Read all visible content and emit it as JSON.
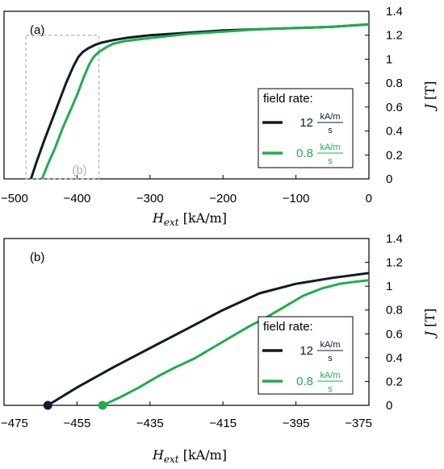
{
  "chart_data": [
    {
      "type": "line",
      "panel_label": "(a)",
      "xlabel": "H_ext [kA/m]",
      "ylabel": "J [T]",
      "xlim": [
        -500,
        0
      ],
      "ylim": [
        0,
        1.4
      ],
      "x_ticks": [
        "−500",
        "−400",
        "−300",
        "−200",
        "−100",
        "0"
      ],
      "y_ticks": [
        "0",
        "0.2",
        "0.4",
        "0.6",
        "0.8",
        "1",
        "1.2",
        "1.4"
      ],
      "y_axis_side": "right",
      "inset_box": {
        "x": [
          -470,
          -370
        ],
        "y": [
          0,
          1.2
        ],
        "label": "(b)",
        "color": "#b0b0b0"
      },
      "legend": {
        "title": "field rate:",
        "placement": "right",
        "entries": [
          {
            "value": "12",
            "num": "kA/m",
            "den": "s",
            "color": "#0d1b2a"
          },
          {
            "value": "0.8",
            "num": "kA/m",
            "den": "s",
            "color": "#1fae4b"
          }
        ]
      },
      "series": [
        {
          "color": "#0d1b2a",
          "x": [
            -463,
            -455,
            -445,
            -435,
            -425,
            -415,
            -405,
            -398,
            -392,
            -385,
            -375,
            -365,
            -350,
            -330,
            -300,
            -250,
            -200,
            -150,
            -100,
            -50,
            0
          ],
          "y": [
            0,
            0.15,
            0.32,
            0.48,
            0.64,
            0.8,
            0.94,
            1.02,
            1.06,
            1.09,
            1.12,
            1.14,
            1.16,
            1.18,
            1.2,
            1.22,
            1.24,
            1.25,
            1.26,
            1.27,
            1.29
          ]
        },
        {
          "color": "#1fae4b",
          "x": [
            -448,
            -440,
            -430,
            -420,
            -410,
            -400,
            -390,
            -383,
            -377,
            -370,
            -360,
            -350,
            -335,
            -310,
            -280,
            -250,
            -200,
            -150,
            -100,
            -50,
            0
          ],
          "y": [
            0,
            0.12,
            0.26,
            0.42,
            0.56,
            0.7,
            0.86,
            0.96,
            1.02,
            1.06,
            1.1,
            1.13,
            1.15,
            1.17,
            1.19,
            1.21,
            1.23,
            1.25,
            1.26,
            1.27,
            1.29
          ]
        }
      ]
    },
    {
      "type": "line",
      "panel_label": "(b)",
      "xlabel": "H_ext [kA/m]",
      "ylabel": "J [T]",
      "xlim": [
        -475,
        -375
      ],
      "ylim": [
        0,
        1.4
      ],
      "x_ticks": [
        "−475",
        "−455",
        "−435",
        "−415",
        "−395",
        "−375"
      ],
      "y_ticks": [
        "0",
        "0.2",
        "0.4",
        "0.6",
        "0.8",
        "1",
        "1.2",
        "1.4"
      ],
      "y_axis_side": "right",
      "legend": {
        "title": "field rate:",
        "placement": "right",
        "entries": [
          {
            "value": "12",
            "num": "kA/m",
            "den": "s",
            "color": "#0d1b2a"
          },
          {
            "value": "0.8",
            "num": "kA/m",
            "den": "s",
            "color": "#1fae4b"
          }
        ]
      },
      "series": [
        {
          "color": "#0d1b2a",
          "start_marker": true,
          "x": [
            -463,
            -455,
            -445,
            -435,
            -425,
            -415,
            -405,
            -395,
            -385,
            -375
          ],
          "y": [
            0,
            0.15,
            0.32,
            0.48,
            0.64,
            0.8,
            0.94,
            1.02,
            1.07,
            1.11
          ]
        },
        {
          "color": "#1fae4b",
          "start_marker": true,
          "x": [
            -448,
            -443,
            -438,
            -433,
            -428,
            -423,
            -418,
            -413,
            -408,
            -403,
            -398,
            -393,
            -388,
            -383,
            -378,
            -375
          ],
          "y": [
            0,
            0.07,
            0.15,
            0.24,
            0.32,
            0.39,
            0.48,
            0.57,
            0.66,
            0.74,
            0.83,
            0.92,
            0.98,
            1.02,
            1.04,
            1.05
          ]
        }
      ]
    }
  ]
}
